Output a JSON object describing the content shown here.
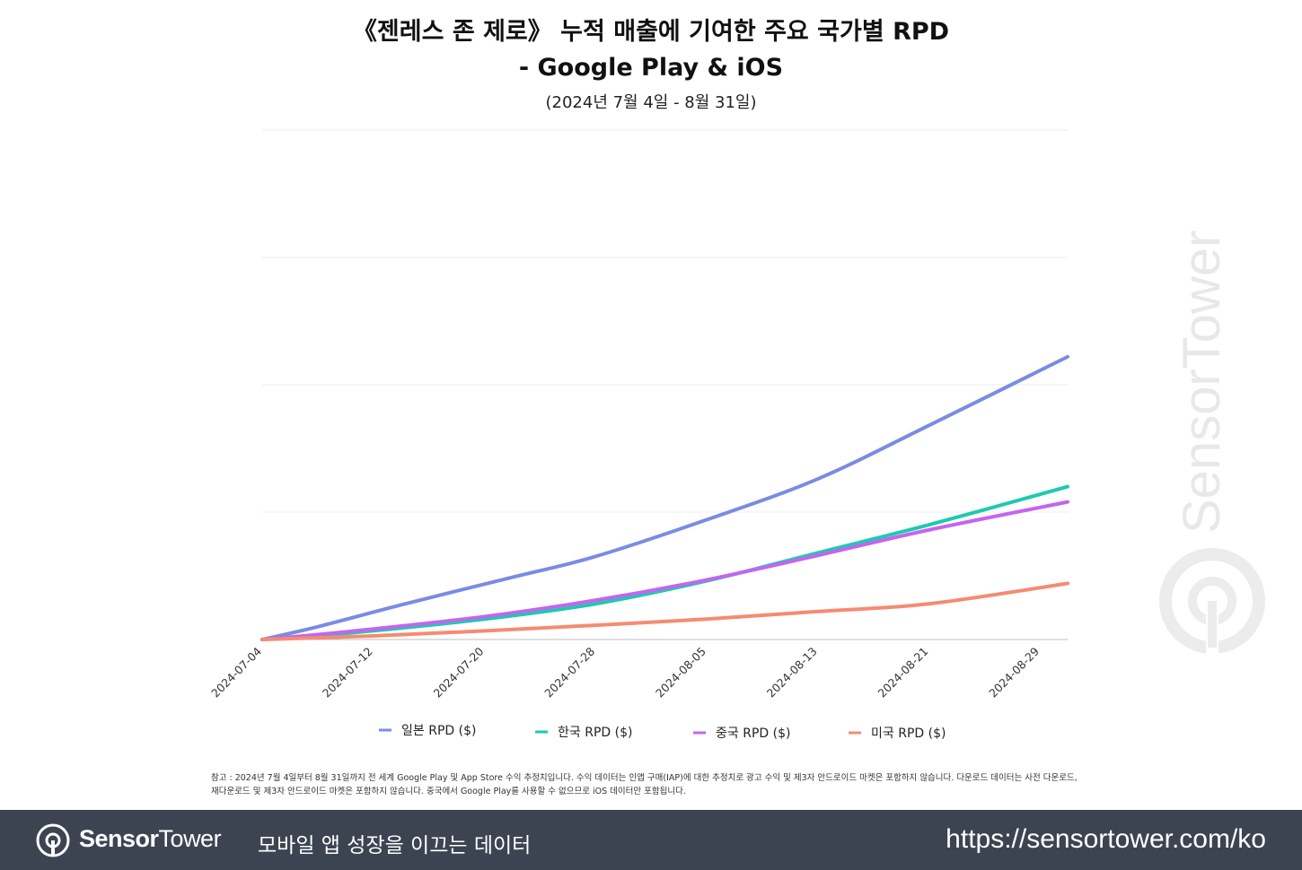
{
  "title_line1": "《젠레스 존 제로》 누적 매출에 기여한 주요 국가별 RPD",
  "title_line2": "- Google Play & iOS",
  "subtitle": "(2024년 7월 4일 - 8월 31일)",
  "chart_data": {
    "type": "line",
    "x_ticks": [
      "2024-07-04",
      "2024-07-12",
      "2024-07-20",
      "2024-07-28",
      "2024-08-05",
      "2024-08-13",
      "2024-08-21",
      "2024-08-29"
    ],
    "x_start": "2024-07-04",
    "x_end": "2024-08-31",
    "ylim": [
      0,
      1
    ],
    "y_gridlines": 4,
    "grid": true,
    "y_tick_labels_shown": false,
    "legend_position": "bottom",
    "series": [
      {
        "name": "일본 RPD ($)",
        "color": "#7b8be3",
        "points": [
          [
            "2024-07-04",
            0
          ],
          [
            "2024-07-08",
            0.025
          ],
          [
            "2024-07-14",
            0.068
          ],
          [
            "2024-07-22",
            0.122
          ],
          [
            "2024-07-28",
            0.163
          ],
          [
            "2024-08-05",
            0.235
          ],
          [
            "2024-08-13",
            0.315
          ],
          [
            "2024-08-21",
            0.42
          ],
          [
            "2024-08-31",
            0.555
          ]
        ]
      },
      {
        "name": "한국 RPD ($)",
        "color": "#1ec9b0",
        "points": [
          [
            "2024-07-04",
            0
          ],
          [
            "2024-07-10",
            0.012
          ],
          [
            "2024-07-20",
            0.04
          ],
          [
            "2024-07-28",
            0.07
          ],
          [
            "2024-08-05",
            0.115
          ],
          [
            "2024-08-13",
            0.17
          ],
          [
            "2024-08-21",
            0.225
          ],
          [
            "2024-08-31",
            0.3
          ]
        ]
      },
      {
        "name": "중국 RPD ($)",
        "color": "#c465f0",
        "points": [
          [
            "2024-07-04",
            0
          ],
          [
            "2024-07-10",
            0.015
          ],
          [
            "2024-07-20",
            0.045
          ],
          [
            "2024-07-28",
            0.077
          ],
          [
            "2024-08-05",
            0.117
          ],
          [
            "2024-08-13",
            0.165
          ],
          [
            "2024-08-21",
            0.215
          ],
          [
            "2024-08-31",
            0.27
          ]
        ]
      },
      {
        "name": "미국 RPD ($)",
        "color": "#f58b72",
        "points": [
          [
            "2024-07-04",
            0
          ],
          [
            "2024-07-12",
            0.007
          ],
          [
            "2024-07-20",
            0.017
          ],
          [
            "2024-07-28",
            0.028
          ],
          [
            "2024-08-05",
            0.04
          ],
          [
            "2024-08-13",
            0.055
          ],
          [
            "2024-08-21",
            0.07
          ],
          [
            "2024-08-31",
            0.11
          ]
        ]
      }
    ]
  },
  "legend": [
    "일본 RPD ($)",
    "한국 RPD ($)",
    "중국 RPD ($)",
    "미국 RPD ($)"
  ],
  "note_line1": "참고 : 2024년 7월 4일부터 8월 31일까지 전 세계 Google Play 및 App Store 수익 추정치입니다. 수익 데이터는 인앱 구매(IAP)에 대한 추정치로 광고 수익 및 제3자 안드로이드 마켓은 포함하지 않습니다. 다운로드 데이터는 사전 다운로드,",
  "note_line2": "재다운로드 및 제3자 안드로이드 마켓은 포함하지 않습니다. 중국에서 Google Play를 사용할 수 없으므로 iOS 데이터만 포함됩니다.",
  "watermark": "SensorTower",
  "footer": {
    "brand_bold": "Sensor",
    "brand_rest": "Tower",
    "tagline": "모바일 앱 성장을 이끄는 데이터",
    "url": "https://sensortower.com/ko"
  }
}
